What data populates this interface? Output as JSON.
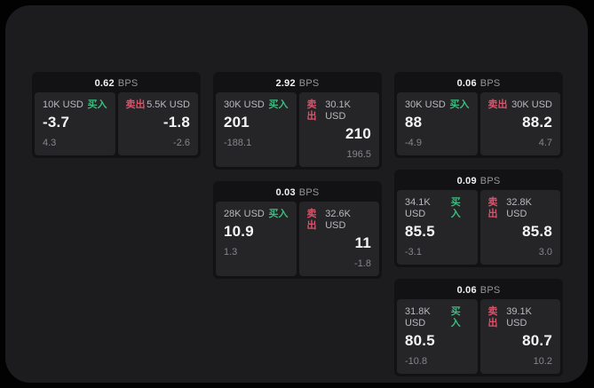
{
  "theme": {
    "background": "#020202",
    "surface": "#1c1c1e",
    "card_bg": "#121214",
    "tile_bg": "#252528",
    "buy_color": "#3dba7e",
    "sell_color": "#d9536b",
    "price_color": "#f4f4f5",
    "muted_color": "#86868b"
  },
  "labels": {
    "unit": "BPS",
    "buy": "买入",
    "sell": "卖出"
  },
  "cards": [
    {
      "bps": "0.62",
      "buy": {
        "amount": "10K USD",
        "price": "-3.7",
        "delta": "4.3"
      },
      "sell": {
        "amount": "5.5K USD",
        "price": "-1.8",
        "delta": "-2.6"
      }
    },
    {
      "bps": "2.92",
      "buy": {
        "amount": "30K USD",
        "price": "201",
        "delta": "-188.1"
      },
      "sell": {
        "amount": "30.1K USD",
        "price": "210",
        "delta": "196.5"
      }
    },
    {
      "bps": "0.03",
      "buy": {
        "amount": "28K USD",
        "price": "10.9",
        "delta": "1.3"
      },
      "sell": {
        "amount": "32.6K USD",
        "price": "11",
        "delta": "-1.8"
      }
    },
    {
      "bps": "0.06",
      "buy": {
        "amount": "30K USD",
        "price": "88",
        "delta": "-4.9"
      },
      "sell": {
        "amount": "30K USD",
        "price": "88.2",
        "delta": "4.7"
      }
    },
    {
      "bps": "0.09",
      "buy": {
        "amount": "34.1K USD",
        "price": "85.5",
        "delta": "-3.1"
      },
      "sell": {
        "amount": "32.8K USD",
        "price": "85.8",
        "delta": "3.0"
      }
    },
    {
      "bps": "0.06",
      "buy": {
        "amount": "31.8K USD",
        "price": "80.5",
        "delta": "-10.8"
      },
      "sell": {
        "amount": "39.1K USD",
        "price": "80.7",
        "delta": "10.2"
      }
    }
  ],
  "layout_columns": [
    [
      0
    ],
    [
      1,
      2
    ],
    [
      3,
      4,
      5
    ]
  ]
}
